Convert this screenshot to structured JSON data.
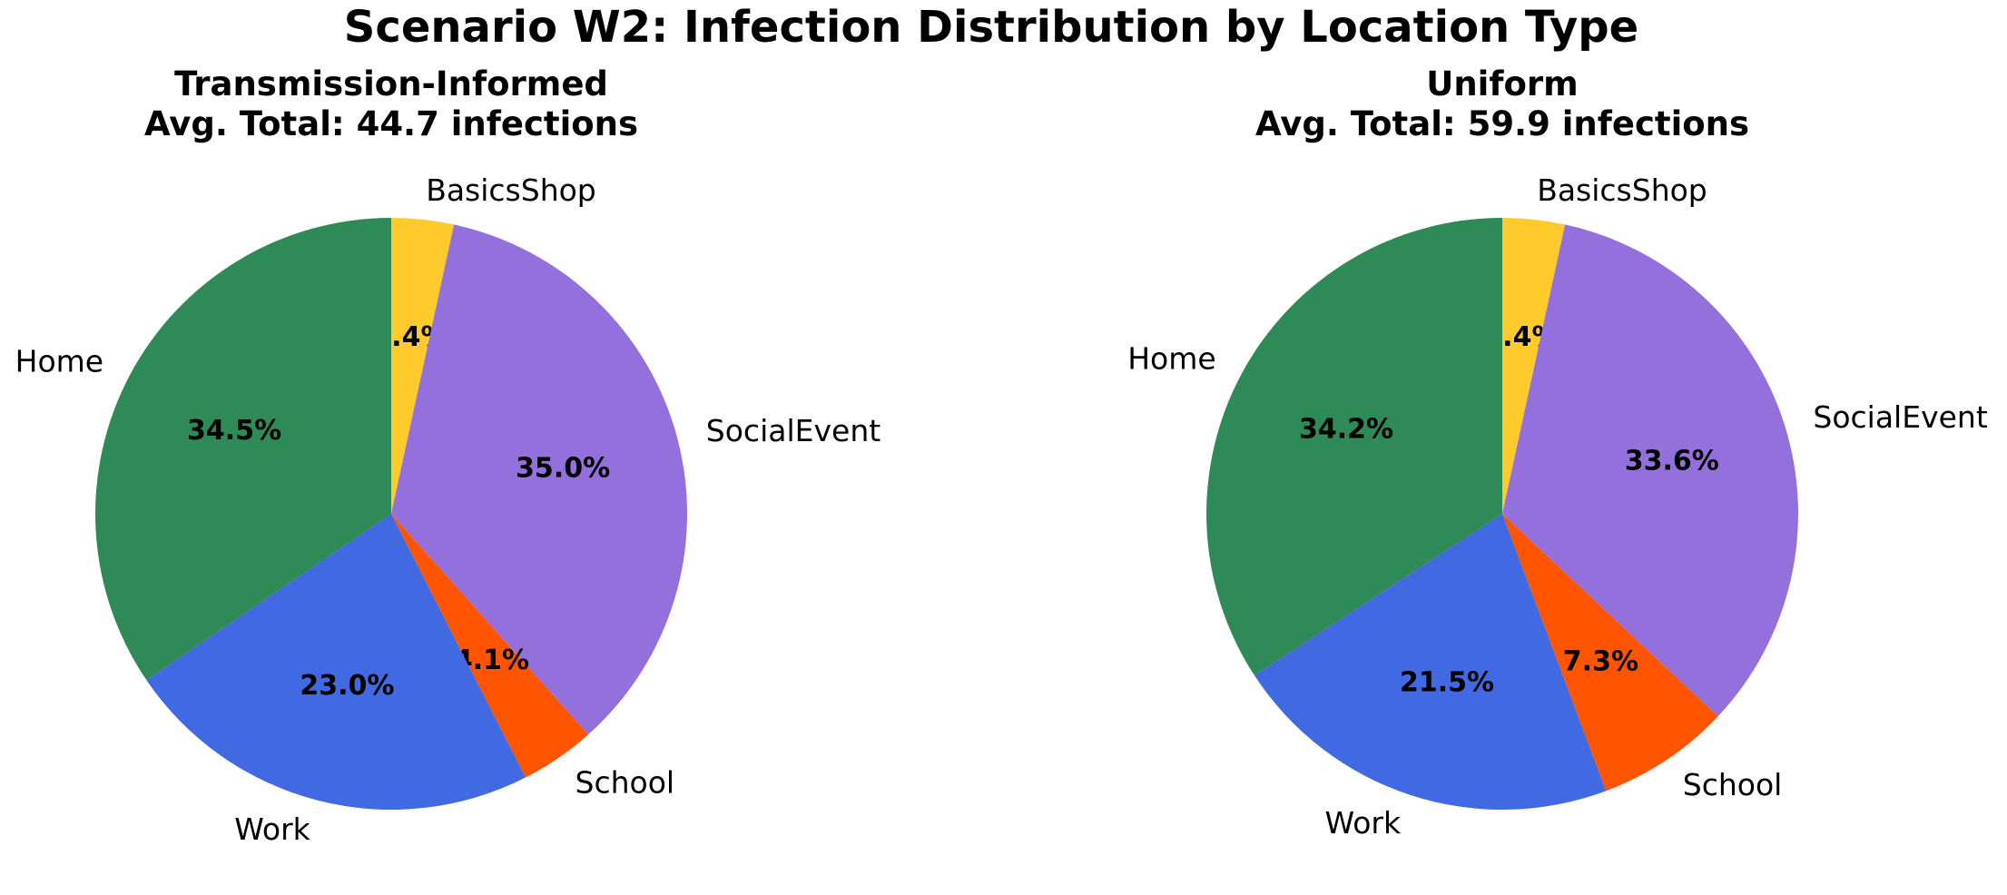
{
  "figure": {
    "title": "Scenario W2: Infection Distribution by Location Type"
  },
  "chart_data": [
    {
      "type": "pie",
      "title_line1": "Transmission-Informed",
      "title_line2": "Avg. Total: 44.7 infections",
      "start_angle_deg": 90,
      "direction": "clockwise",
      "slices": [
        {
          "label": "BasicsShop",
          "value": 3.4,
          "pct_text": "3.4%",
          "color": "#FFCA2C"
        },
        {
          "label": "SocialEvent",
          "value": 35.0,
          "pct_text": "35.0%",
          "color": "#9370DB"
        },
        {
          "label": "School",
          "value": 4.1,
          "pct_text": "4.1%",
          "color": "#FF5500"
        },
        {
          "label": "Work",
          "value": 23.0,
          "pct_text": "23.0%",
          "color": "#4169E1"
        },
        {
          "label": "Home",
          "value": 34.5,
          "pct_text": "34.5%",
          "color": "#2E8B57"
        }
      ]
    },
    {
      "type": "pie",
      "title_line1": "Uniform",
      "title_line2": "Avg. Total: 59.9 infections",
      "start_angle_deg": 90,
      "direction": "clockwise",
      "slices": [
        {
          "label": "BasicsShop",
          "value": 3.4,
          "pct_text": "3.4%",
          "color": "#FFCA2C"
        },
        {
          "label": "SocialEvent",
          "value": 33.6,
          "pct_text": "33.6%",
          "color": "#9370DB"
        },
        {
          "label": "School",
          "value": 7.3,
          "pct_text": "7.3%",
          "color": "#FF5500"
        },
        {
          "label": "Work",
          "value": 21.5,
          "pct_text": "21.5%",
          "color": "#4169E1"
        },
        {
          "label": "Home",
          "value": 34.2,
          "pct_text": "34.2%",
          "color": "#2E8B57"
        }
      ]
    }
  ]
}
